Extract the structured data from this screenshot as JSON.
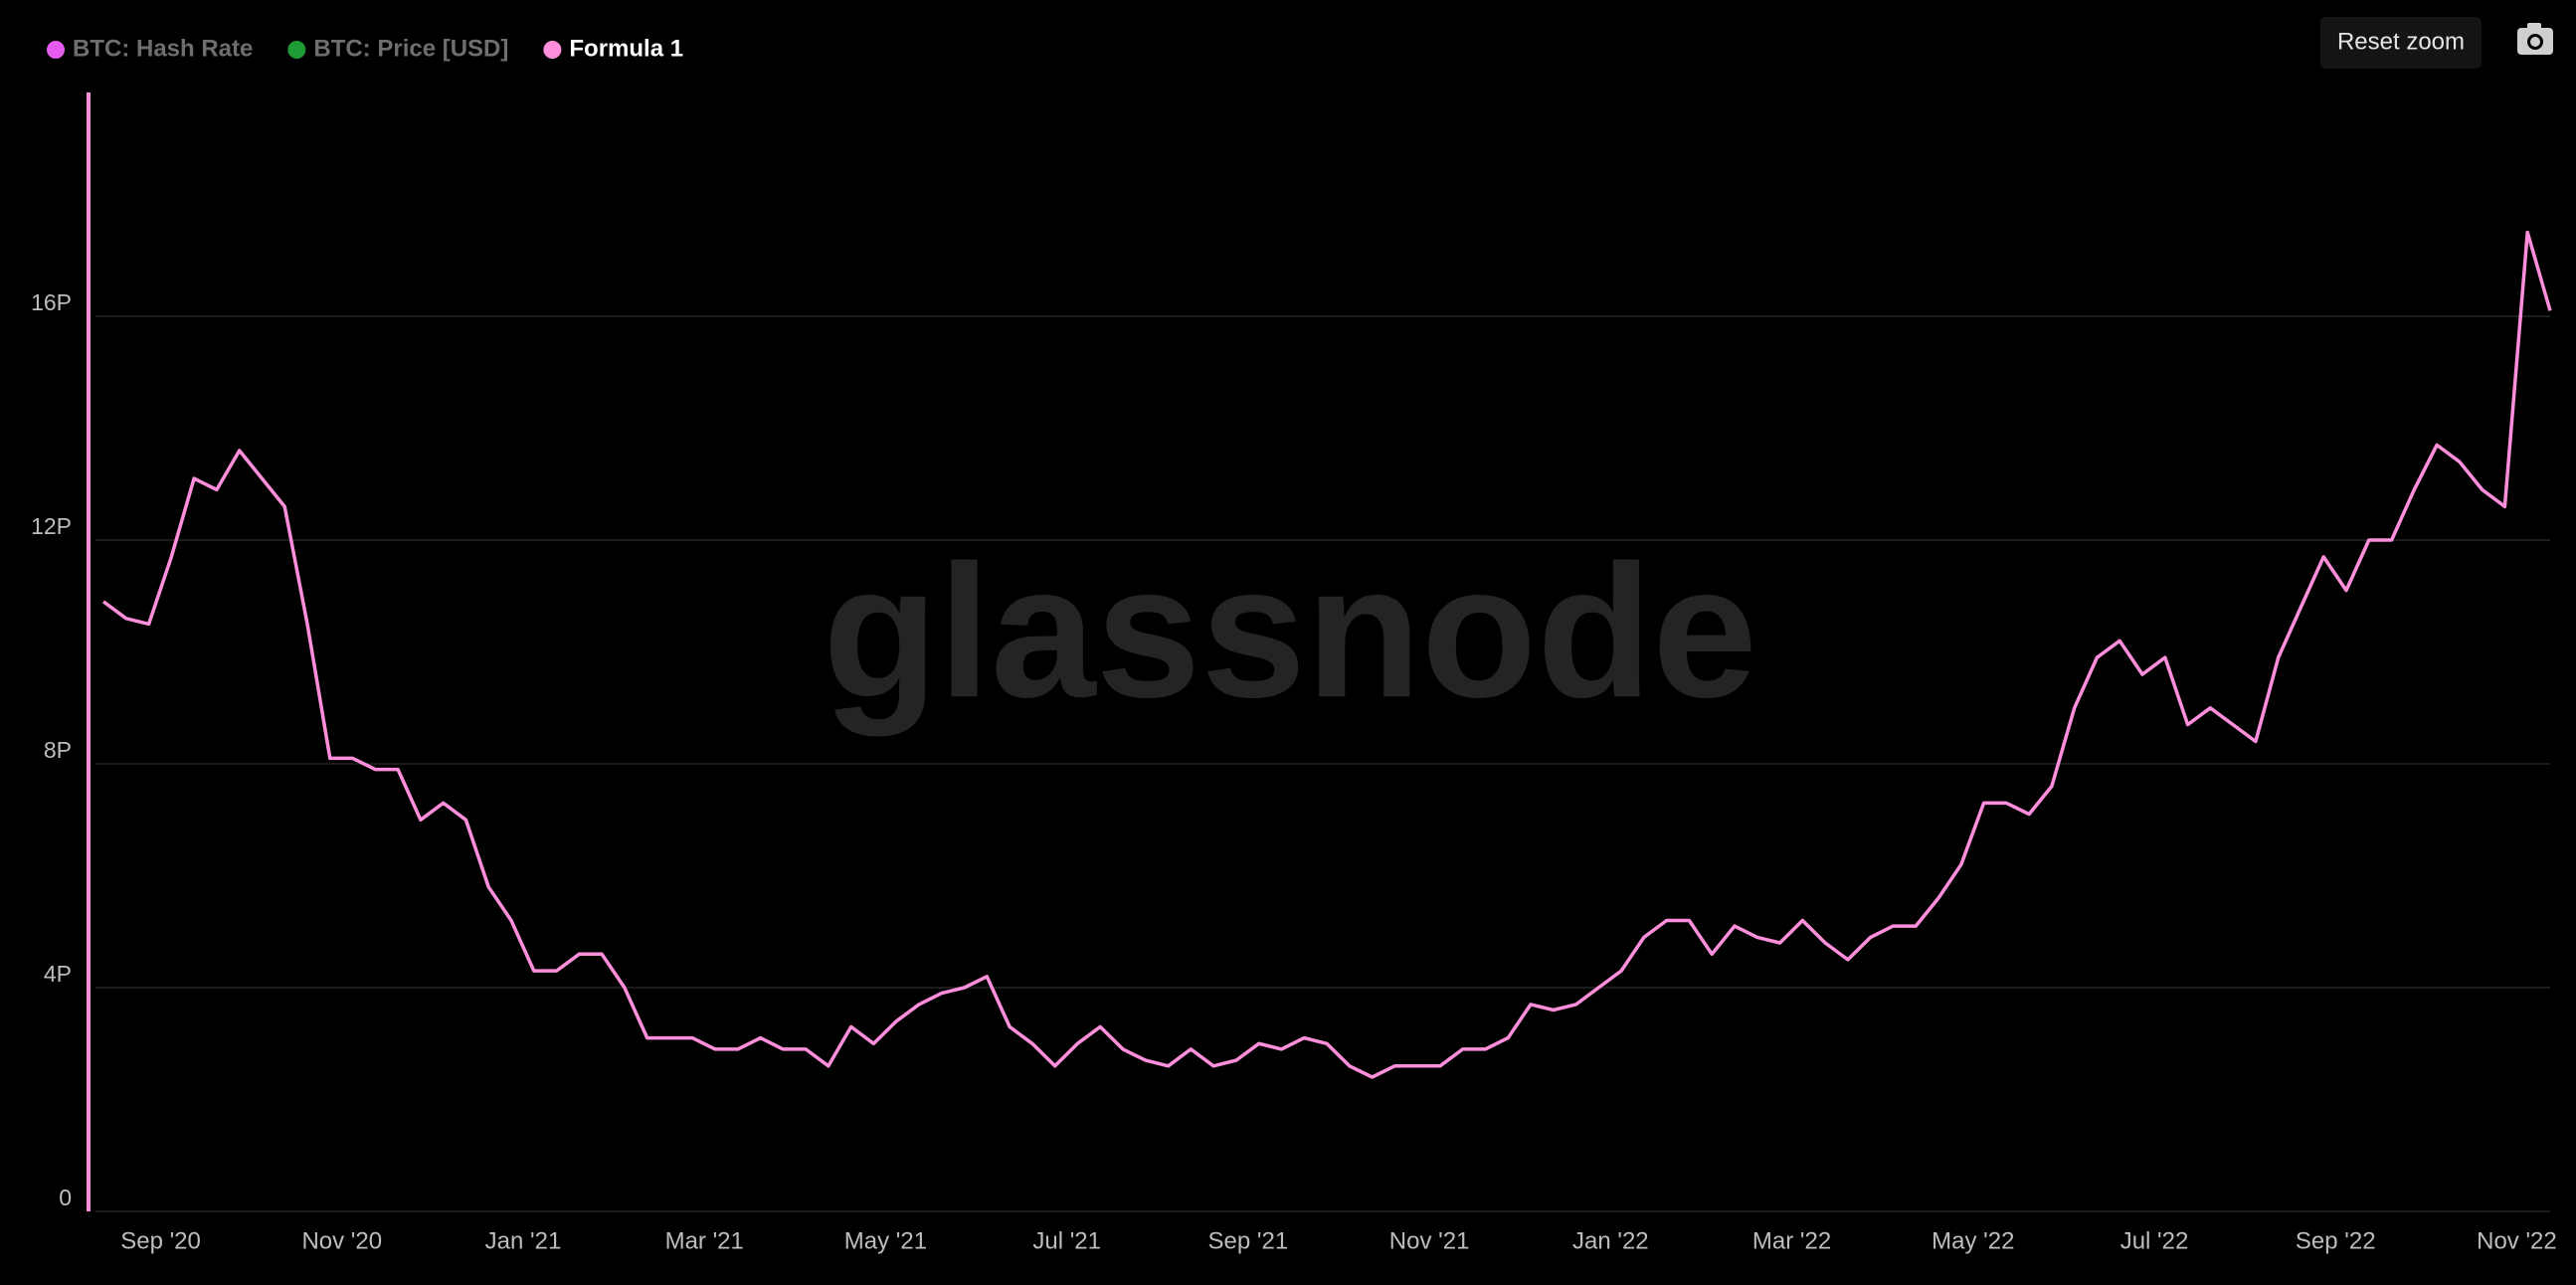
{
  "chart_data": {
    "type": "line",
    "watermark": "glassnode",
    "reset_zoom": "Reset zoom",
    "categories": [
      null,
      null,
      "Sep '20",
      null,
      null,
      null,
      null,
      null,
      null,
      null,
      "Nov '20",
      null,
      null,
      null,
      null,
      null,
      null,
      null,
      "Jan '21",
      null,
      null,
      null,
      null,
      null,
      null,
      null,
      "Mar '21",
      null,
      null,
      null,
      null,
      null,
      null,
      null,
      "May '21",
      null,
      null,
      null,
      null,
      null,
      null,
      null,
      "Jul '21",
      null,
      null,
      null,
      null,
      null,
      null,
      null,
      "Sep '21",
      null,
      null,
      null,
      null,
      null,
      null,
      null,
      "Nov '21",
      null,
      null,
      null,
      null,
      null,
      null,
      null,
      "Jan '22",
      null,
      null,
      null,
      null,
      null,
      null,
      null,
      "Mar '22",
      null,
      null,
      null,
      null,
      null,
      null,
      null,
      "May '22",
      null,
      null,
      null,
      null,
      null,
      null,
      null,
      "Jul '22",
      null,
      null,
      null,
      null,
      null,
      null,
      null,
      "Sep '22",
      null,
      null,
      null,
      null,
      null,
      null,
      null,
      "Nov '22",
      null,
      null
    ],
    "series": [
      {
        "name": "BTC: Hash Rate",
        "color": "#e75cf0",
        "visible": false
      },
      {
        "name": "BTC: Price [USD]",
        "color": "#1e9b34",
        "visible": false
      },
      {
        "name": "Formula 1",
        "color": "#ff8fdc",
        "visible": true,
        "values": [
          10.9,
          10.6,
          10.5,
          11.7,
          13.1,
          12.9,
          13.6,
          13.1,
          12.6,
          10.5,
          8.1,
          8.1,
          7.9,
          7.9,
          7.0,
          7.3,
          7.0,
          5.8,
          5.2,
          4.3,
          4.3,
          4.6,
          4.6,
          4.0,
          3.1,
          3.1,
          3.1,
          2.9,
          2.9,
          3.1,
          2.9,
          2.9,
          2.6,
          3.3,
          3.0,
          3.4,
          3.7,
          3.9,
          4.0,
          4.2,
          3.3,
          3.0,
          2.6,
          3.0,
          3.3,
          2.9,
          2.7,
          2.6,
          2.9,
          2.6,
          2.7,
          3.0,
          2.9,
          3.1,
          3.0,
          2.6,
          2.4,
          2.6,
          2.6,
          2.6,
          2.9,
          2.9,
          3.1,
          3.7,
          3.6,
          3.7,
          4.0,
          4.3,
          4.9,
          5.2,
          5.2,
          4.6,
          5.1,
          4.9,
          4.8,
          5.2,
          4.8,
          4.5,
          4.9,
          5.1,
          5.1,
          5.6,
          6.2,
          7.3,
          7.3,
          7.1,
          7.6,
          9.0,
          9.9,
          10.2,
          9.6,
          9.9,
          8.7,
          9.0,
          8.7,
          8.4,
          9.9,
          10.8,
          11.7,
          11.1,
          12.0,
          12.0,
          12.9,
          13.7,
          13.4,
          12.9,
          12.6,
          17.5,
          16.1
        ]
      }
    ],
    "ylim": [
      0,
      20
    ],
    "yticks": [
      0,
      {
        "value": 4,
        "label": "4P"
      },
      {
        "value": 8,
        "label": "8P"
      },
      {
        "value": 12,
        "label": "12P"
      },
      {
        "value": 16,
        "label": "16P"
      }
    ],
    "grid": true
  }
}
